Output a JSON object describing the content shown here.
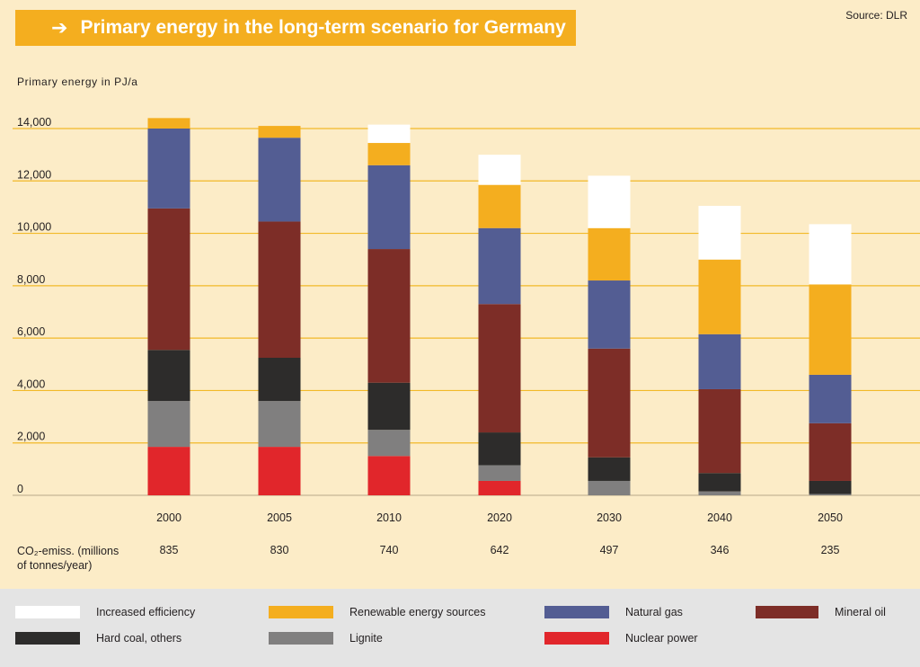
{
  "title": "Primary energy in the long-term scenario for Germany",
  "title_arrow": "➔",
  "source": "Source: DLR",
  "colors": {
    "background": "#fcecc7",
    "banner": "#f4ae1f",
    "gridline": "#f2b928",
    "legend_bg": "#e4e4e4"
  },
  "chart_data": {
    "type": "bar",
    "stacked": true,
    "ylabel": "Primary energy in PJ/a",
    "ylim": [
      0,
      14000
    ],
    "yticks": [
      "0",
      "2,000",
      "4,000",
      "6,000",
      "8,000",
      "10,000",
      "12,000",
      "14,000"
    ],
    "ytick_values": [
      0,
      2000,
      4000,
      6000,
      8000,
      10000,
      12000,
      14000
    ],
    "grid": true,
    "categories": [
      "2000",
      "2005",
      "2010",
      "2020",
      "2030",
      "2040",
      "2050"
    ],
    "series": [
      {
        "name": "Nuclear power",
        "color": "#e1262b",
        "values": [
          1850,
          1850,
          1500,
          550,
          0,
          0,
          0
        ]
      },
      {
        "name": "Lignite",
        "color": "#807f7f",
        "values": [
          1750,
          1750,
          1000,
          600,
          550,
          150,
          50
        ]
      },
      {
        "name": "Hard coal, others",
        "color": "#2d2c2b",
        "values": [
          1950,
          1650,
          1800,
          1250,
          900,
          700,
          500
        ]
      },
      {
        "name": "Mineral oil",
        "color": "#7d2d27",
        "values": [
          5400,
          5200,
          5100,
          4900,
          4150,
          3200,
          2200
        ]
      },
      {
        "name": "Natural gas",
        "color": "#535d93",
        "values": [
          3050,
          3200,
          3200,
          2900,
          2600,
          2100,
          1850
        ]
      },
      {
        "name": "Renewable energy sources",
        "color": "#f4ae1f",
        "values": [
          400,
          450,
          850,
          1650,
          2000,
          2850,
          3450
        ]
      },
      {
        "name": "Increased efficiency",
        "color": "#ffffff",
        "values": [
          0,
          0,
          700,
          1150,
          2000,
          2050,
          2300
        ]
      }
    ],
    "legend_order": [
      "Increased efficiency",
      "Renewable energy sources",
      "Natural gas",
      "Mineral oil",
      "Hard coal, others",
      "Lignite",
      "Nuclear power"
    ],
    "legend_position": "bottom"
  },
  "co2": {
    "label_line1": "CO₂-emiss. (millions",
    "label_line2": "of tonnes/year)",
    "values": [
      "835",
      "830",
      "740",
      "642",
      "497",
      "346",
      "235"
    ]
  }
}
